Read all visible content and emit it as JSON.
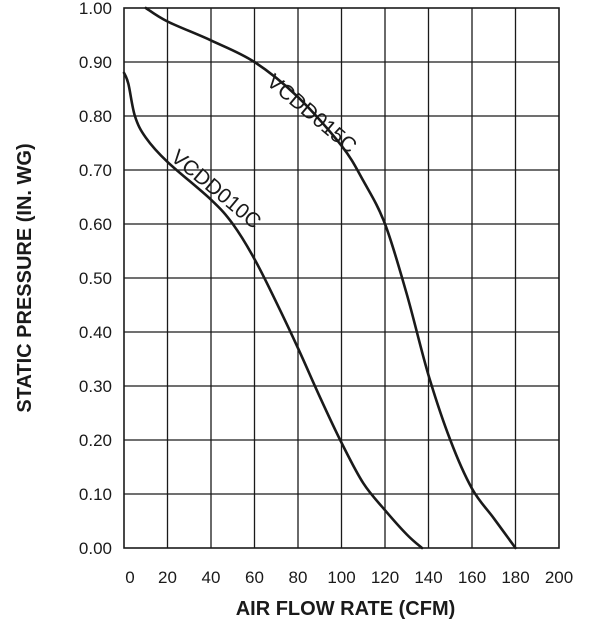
{
  "chart_data": {
    "type": "line",
    "title": "",
    "xlabel": "AIR FLOW RATE (CFM)",
    "ylabel": "STATIC PRESSURE (IN. WG)",
    "xlim": [
      0,
      200
    ],
    "ylim": [
      0,
      1.0
    ],
    "x_ticks": [
      "0",
      "20",
      "40",
      "60",
      "80",
      "100",
      "120",
      "140",
      "160",
      "180",
      "200"
    ],
    "y_ticks": [
      "0.00",
      "0.10",
      "0.20",
      "0.30",
      "0.40",
      "0.50",
      "0.60",
      "0.70",
      "0.80",
      "0.90",
      "1.00"
    ],
    "grid": true,
    "legend": "none (series labeled directly on curves)",
    "series": [
      {
        "name": "VCDD015C",
        "label_at": [
          65,
          0.86
        ],
        "points": [
          [
            10,
            1.0
          ],
          [
            20,
            0.975
          ],
          [
            40,
            0.94
          ],
          [
            60,
            0.9
          ],
          [
            80,
            0.835
          ],
          [
            100,
            0.745
          ],
          [
            110,
            0.68
          ],
          [
            120,
            0.6
          ],
          [
            130,
            0.47
          ],
          [
            140,
            0.32
          ],
          [
            150,
            0.2
          ],
          [
            160,
            0.11
          ],
          [
            170,
            0.055
          ],
          [
            180,
            0.0
          ]
        ]
      },
      {
        "name": "VCDD010C",
        "label_at": [
          21,
          0.72
        ],
        "points": [
          [
            0,
            0.88
          ],
          [
            2,
            0.86
          ],
          [
            5,
            0.8
          ],
          [
            10,
            0.76
          ],
          [
            20,
            0.715
          ],
          [
            40,
            0.645
          ],
          [
            50,
            0.6
          ],
          [
            60,
            0.535
          ],
          [
            70,
            0.455
          ],
          [
            80,
            0.37
          ],
          [
            90,
            0.28
          ],
          [
            100,
            0.195
          ],
          [
            110,
            0.12
          ],
          [
            120,
            0.07
          ],
          [
            130,
            0.025
          ],
          [
            137,
            0.0
          ]
        ]
      }
    ]
  }
}
